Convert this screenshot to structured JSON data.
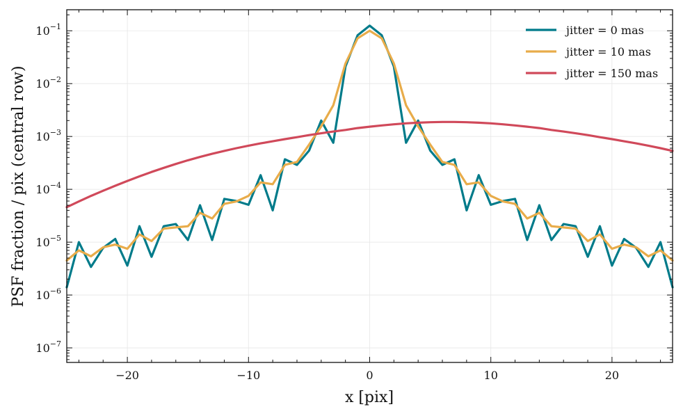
{
  "chart_data": {
    "type": "line",
    "title": "",
    "xlabel": "x [pix]",
    "ylabel": "PSF fraction / pix (central row)",
    "xlim": [
      -25,
      25
    ],
    "ylim": [
      5.3e-08,
      0.25
    ],
    "yscale": "log",
    "grid": true,
    "legend_position": "top-right",
    "xticks": [
      -20,
      -10,
      0,
      10,
      20
    ],
    "xtick_labels": [
      "−20",
      "−10",
      "0",
      "10",
      "20"
    ],
    "yticks": [
      {
        "value": 1e-07,
        "base": "10",
        "exp": "−7"
      },
      {
        "value": 1e-06,
        "base": "10",
        "exp": "−6"
      },
      {
        "value": 1e-05,
        "base": "10",
        "exp": "−5"
      },
      {
        "value": 0.0001,
        "base": "10",
        "exp": "−4"
      },
      {
        "value": 0.001,
        "base": "10",
        "exp": "−3"
      },
      {
        "value": 0.01,
        "base": "10",
        "exp": "−2"
      },
      {
        "value": 0.1,
        "base": "10",
        "exp": "−1"
      }
    ],
    "x": [
      -25,
      -24,
      -23,
      -22,
      -21,
      -20,
      -19,
      -18,
      -17,
      -16,
      -15,
      -14,
      -13,
      -12,
      -11,
      -10,
      -9,
      -8,
      -7,
      -6,
      -5,
      -4,
      -3,
      -2,
      -1,
      0,
      1,
      2,
      3,
      4,
      5,
      6,
      7,
      8,
      9,
      10,
      11,
      12,
      13,
      14,
      15,
      16,
      17,
      18,
      19,
      20,
      21,
      22,
      23,
      24,
      25
    ],
    "series": [
      {
        "name": "jitter = 0 mas",
        "color": "#007b8a",
        "values": [
          1.4e-06,
          1e-05,
          3.4e-06,
          7.8e-06,
          1.15e-05,
          3.6e-06,
          2e-05,
          5.3e-06,
          2e-05,
          2.2e-05,
          1.1e-05,
          5e-05,
          1.1e-05,
          6.6e-05,
          6e-05,
          5.1e-05,
          0.000185,
          4e-05,
          0.00037,
          0.00029,
          0.00054,
          0.002,
          0.00076,
          0.021,
          0.082,
          0.125,
          0.082,
          0.021,
          0.00076,
          0.002,
          0.00054,
          0.00029,
          0.00037,
          4e-05,
          0.000185,
          5.1e-05,
          6e-05,
          6.6e-05,
          1.1e-05,
          5e-05,
          1.1e-05,
          2.2e-05,
          2e-05,
          5.3e-06,
          2e-05,
          3.6e-06,
          1.15e-05,
          7.8e-06,
          3.4e-06,
          1e-05,
          1.4e-06
        ]
      },
      {
        "name": "jitter = 10 mas",
        "color": "#e8ac4a",
        "values": [
          4.5e-06,
          7e-06,
          5.4e-06,
          8e-06,
          9e-06,
          7.5e-06,
          1.4e-05,
          1.05e-05,
          1.8e-05,
          1.9e-05,
          2e-05,
          3.6e-05,
          2.8e-05,
          5.3e-05,
          5.9e-05,
          7.5e-05,
          0.000135,
          0.000125,
          0.00029,
          0.00033,
          0.0007,
          0.00155,
          0.0039,
          0.024,
          0.072,
          0.1,
          0.072,
          0.024,
          0.0039,
          0.00155,
          0.0007,
          0.00033,
          0.00029,
          0.000125,
          0.000135,
          7.5e-05,
          5.9e-05,
          5.3e-05,
          2.8e-05,
          3.6e-05,
          2e-05,
          1.9e-05,
          1.8e-05,
          1.05e-05,
          1.4e-05,
          7.5e-06,
          9e-06,
          8e-06,
          5.4e-06,
          7e-06,
          4.5e-06
        ]
      },
      {
        "name": "jitter = 150 mas",
        "color": "#d0495a",
        "values": [
          4.6e-05,
          5.9e-05,
          7.5e-05,
          9.4e-05,
          0.000117,
          0.000144,
          0.000176,
          0.000213,
          0.000255,
          0.000302,
          0.000354,
          0.00041,
          0.00047,
          0.000534,
          0.0006,
          0.00067,
          0.00074,
          0.00081,
          0.00089,
          0.00097,
          0.00106,
          0.00115,
          0.00124,
          0.00133,
          0.00144,
          0.00153,
          0.00162,
          0.0017,
          0.00177,
          0.00182,
          0.00186,
          0.00188,
          0.00188,
          0.00186,
          0.00182,
          0.00177,
          0.0017,
          0.00162,
          0.00153,
          0.00144,
          0.00133,
          0.00124,
          0.00115,
          0.00106,
          0.00097,
          0.00089,
          0.00081,
          0.00074,
          0.00067,
          0.0006,
          0.000534
        ]
      }
    ]
  }
}
